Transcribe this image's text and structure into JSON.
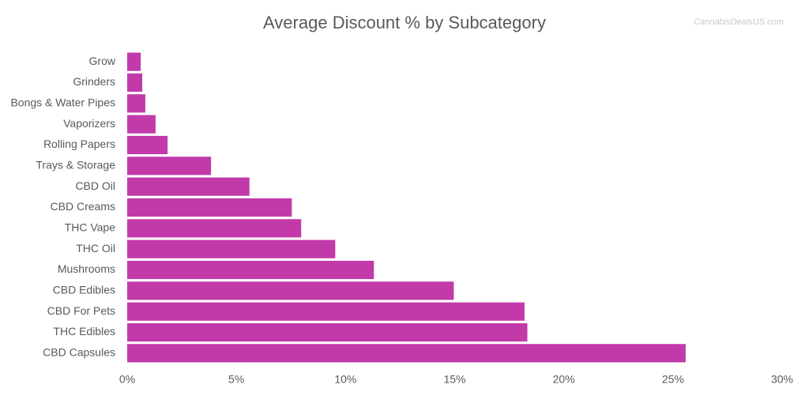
{
  "chart_data": {
    "type": "hbar",
    "title": "Average Discount % by Subcategory",
    "watermark": "CannabisDealsUS.com",
    "categories": [
      "Grow",
      "Grinders",
      "Bongs & Water Pipes",
      "Vaporizers",
      "Rolling Papers",
      "Trays & Storage",
      "CBD Oil",
      "CBD Creams",
      "THC Vape",
      "THC Oil",
      "Mushrooms",
      "CBD Edibles",
      "CBD For Pets",
      "THC Edibles",
      "CBD Capsules"
    ],
    "values": [
      0.62,
      0.69,
      0.83,
      1.3,
      1.85,
      3.84,
      5.6,
      7.54,
      7.97,
      9.53,
      11.3,
      14.96,
      18.2,
      18.33,
      25.58
    ],
    "color": "#c23aa9",
    "xlim": [
      0,
      30
    ],
    "xticks": [
      {
        "value": 0,
        "label": "0%"
      },
      {
        "value": 5,
        "label": "5%"
      },
      {
        "value": 10,
        "label": "10%"
      },
      {
        "value": 15,
        "label": "15%"
      },
      {
        "value": 20,
        "label": "20%"
      },
      {
        "value": 25,
        "label": "25%"
      },
      {
        "value": 30,
        "label": "30%"
      }
    ],
    "grid": false
  }
}
